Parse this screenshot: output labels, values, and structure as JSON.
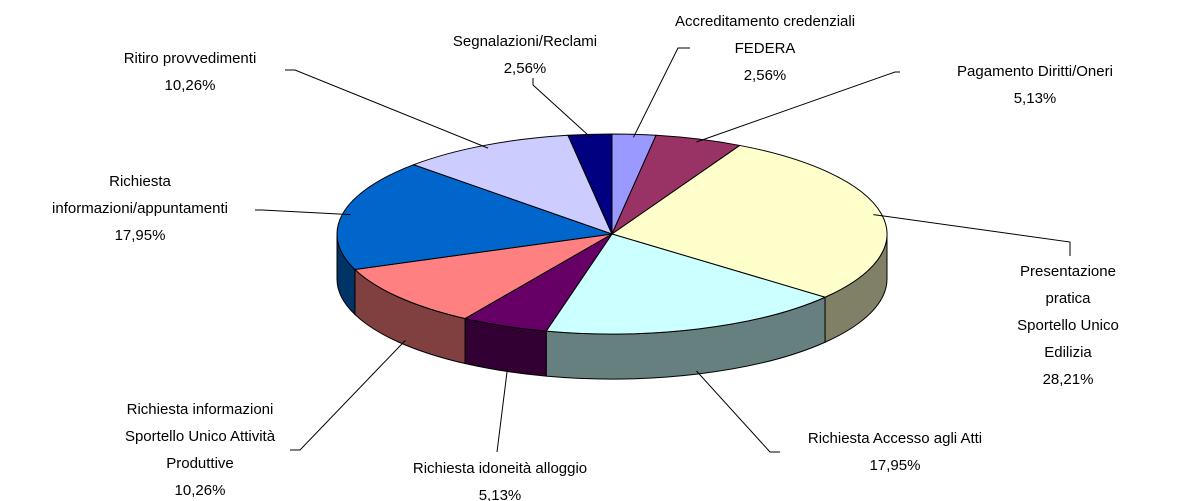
{
  "chart_data": {
    "type": "pie3d",
    "categories": [
      "Accreditamento credenziali\nFEDERA",
      "Pagamento Diritti/Oneri",
      "Presentazione pratica\nSportello Unico Edilizia",
      "Richiesta Accesso agli Atti",
      "Richiesta idoneità alloggio",
      "Richiesta informazioni\nSportello Unico Attività\nProduttive",
      "Richiesta\ninformazioni/appuntamenti",
      "Ritiro provvedimenti",
      "Segnalazioni/Reclami"
    ],
    "values": [
      2.56,
      5.13,
      28.21,
      17.95,
      5.13,
      10.26,
      17.95,
      10.26,
      2.56
    ],
    "value_labels": [
      "2,56%",
      "5,13%",
      "28,21%",
      "17,95%",
      "5,13%",
      "10,26%",
      "17,95%",
      "10,26%",
      "2,56%"
    ],
    "colors": [
      "#9999ff",
      "#993366",
      "#ffffcc",
      "#ccffff",
      "#660066",
      "#ff8080",
      "#0066cc",
      "#ccccff",
      "#000080"
    ]
  }
}
